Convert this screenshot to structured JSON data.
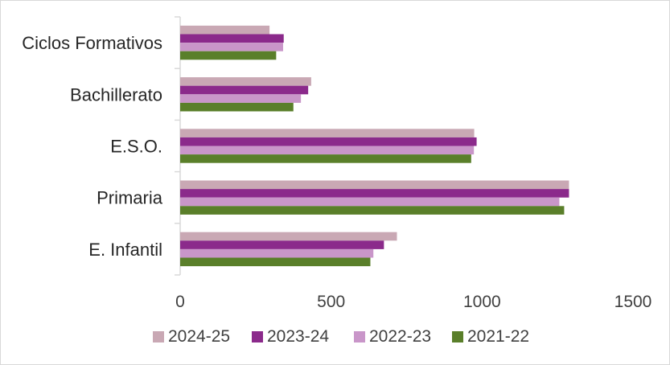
{
  "chart_data": {
    "type": "bar",
    "orientation": "horizontal",
    "title": "",
    "xlabel": "",
    "ylabel": "",
    "categories": [
      "E. Infantil",
      "Primaria",
      "E.S.O.",
      "Bachillerato",
      "Ciclos Formativos"
    ],
    "series": [
      {
        "name": "2024-25",
        "color": "#c9a8b4",
        "values": [
          718,
          1288,
          974,
          434,
          296
        ]
      },
      {
        "name": "2023-24",
        "color": "#8b2a8b",
        "values": [
          675,
          1288,
          982,
          424,
          343
        ]
      },
      {
        "name": "2022-23",
        "color": "#c996c9",
        "values": [
          640,
          1256,
          973,
          400,
          341
        ]
      },
      {
        "name": "2021-22",
        "color": "#5a7f2a",
        "values": [
          630,
          1272,
          964,
          375,
          318
        ]
      }
    ],
    "xlim": [
      0,
      1500
    ],
    "xticks": [
      "0",
      "500",
      "1000",
      "1500"
    ],
    "grid": false,
    "legend": {
      "placement": "bottom"
    }
  }
}
